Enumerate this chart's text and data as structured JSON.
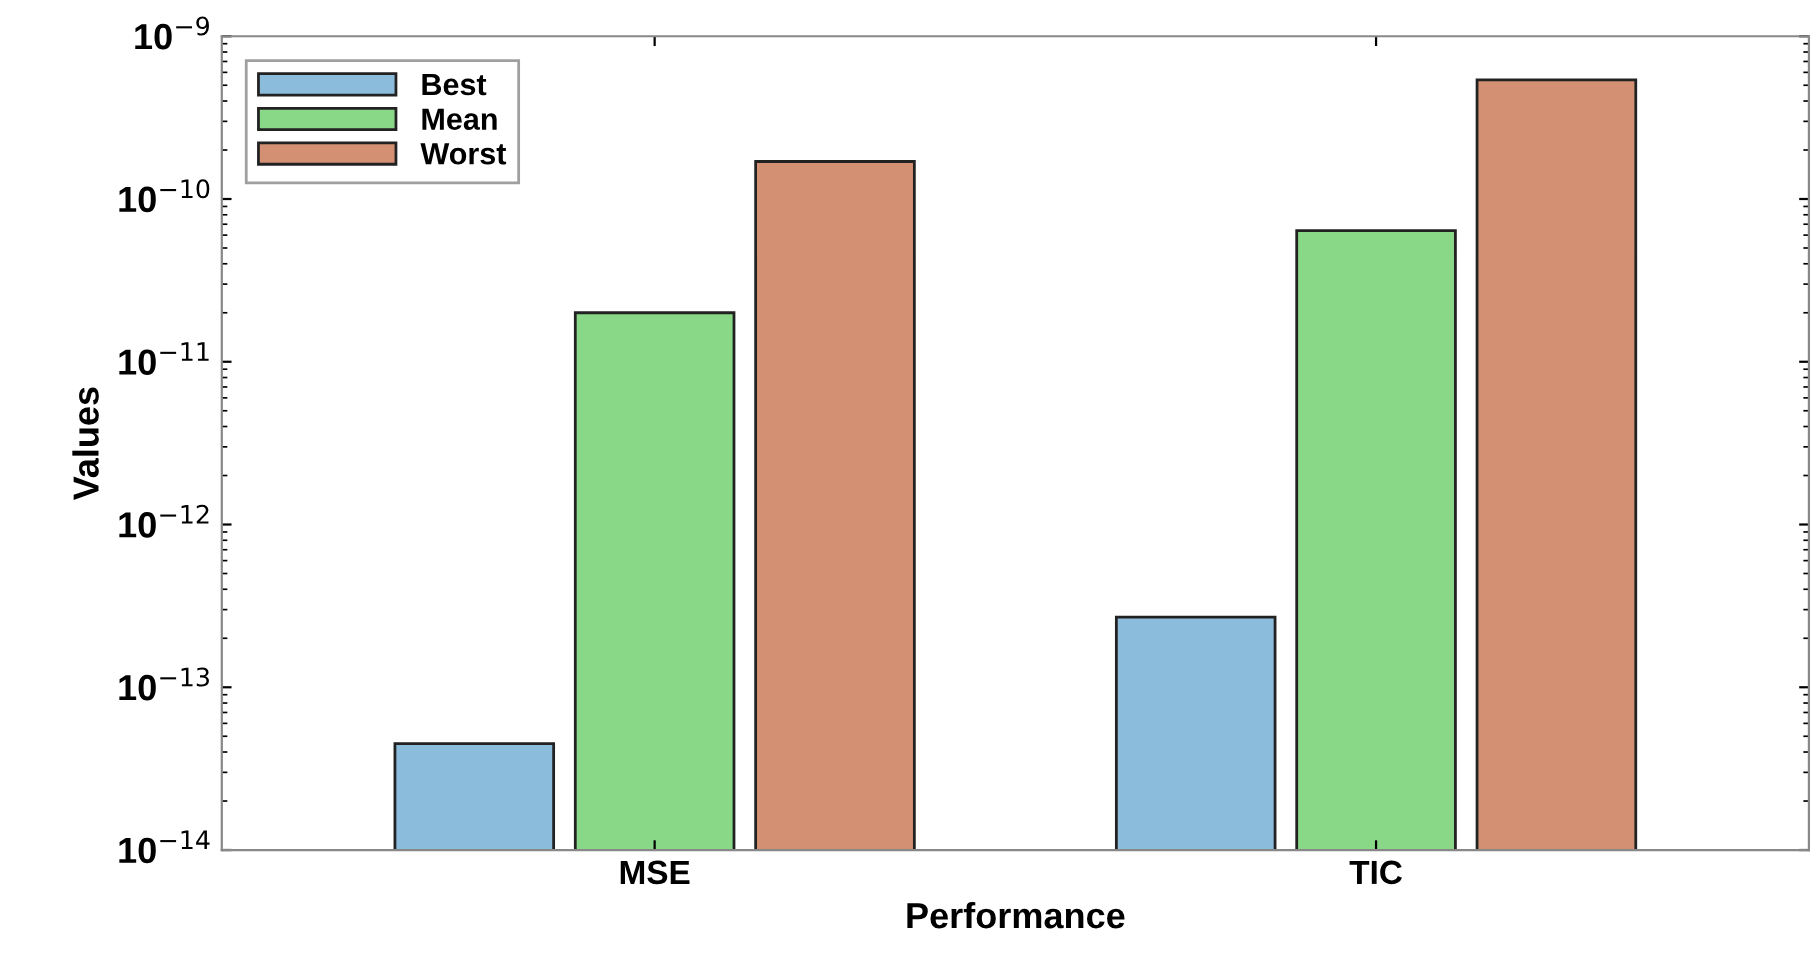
{
  "chart_data": {
    "type": "bar",
    "xlabel": "Performance",
    "ylabel": "Values",
    "categories": [
      "MSE",
      "TIC"
    ],
    "series": [
      {
        "name": "Best",
        "color": "#8bbcdc",
        "values": [
          4.5e-14,
          2.7e-13
        ]
      },
      {
        "name": "Mean",
        "color": "#88d888",
        "values": [
          2e-11,
          6.4e-11
        ]
      },
      {
        "name": "Worst",
        "color": "#d39072",
        "values": [
          1.7e-10,
          5.4e-10
        ]
      }
    ],
    "log": "y",
    "ylim": [
      1e-14,
      1e-09
    ],
    "yticks": [
      {
        "value": 1e-14,
        "label": "10$^{−14}$"
      },
      {
        "value": 1e-13,
        "label": "10$^{−13}$"
      },
      {
        "value": 1e-12,
        "label": "10$^{−12}$"
      },
      {
        "value": 1e-11,
        "label": "10$^{−11}$"
      },
      {
        "value": 1e-10,
        "label": "10$^{−10}$"
      },
      {
        "value": 1e-09,
        "label": "10$^{−9}$"
      }
    ],
    "grid": false,
    "legend": "top left"
  }
}
